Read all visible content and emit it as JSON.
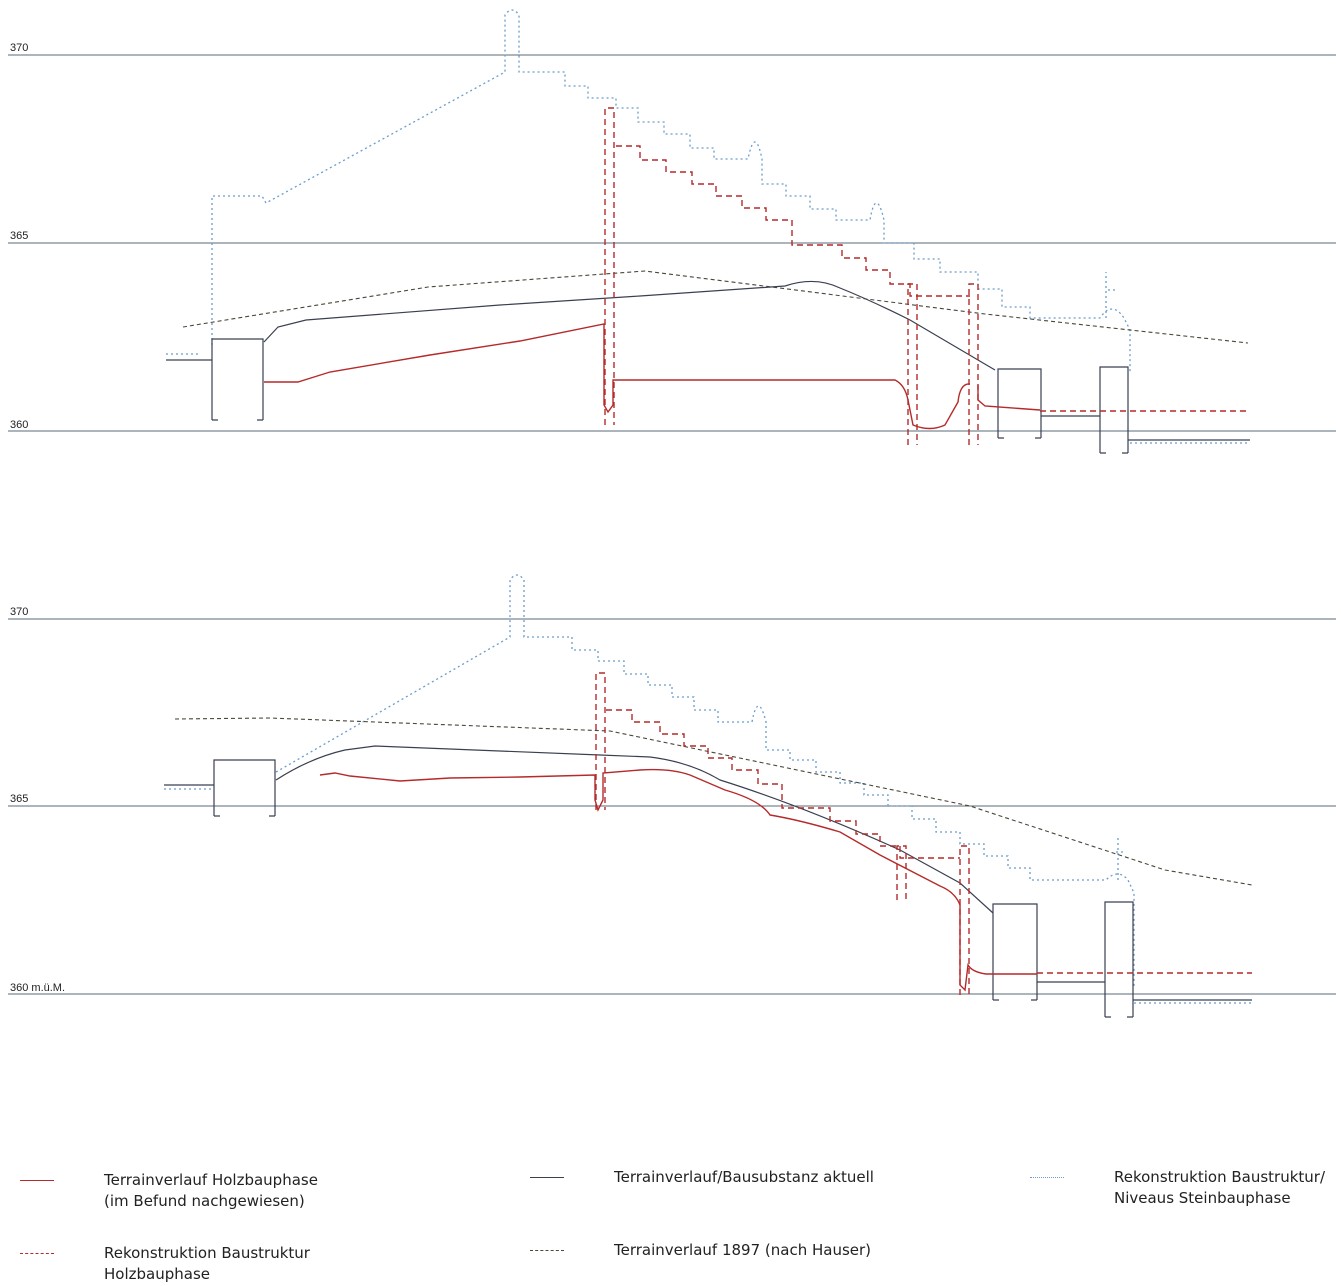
{
  "colors": {
    "holz_terrain": "#b52a2a",
    "holz_reconstruction": "#b52a2a",
    "aktuell": "#3a4050",
    "terrain_1897": "#4a4838",
    "steinbau": "#6a9ccc",
    "level_line": "#5a6878"
  },
  "sections": [
    {
      "name": "section-1",
      "level_labels": [
        "370",
        "365",
        "360"
      ]
    },
    {
      "name": "section-2",
      "level_labels": [
        "370",
        "365",
        "360 m.ü.M."
      ]
    }
  ],
  "legend": [
    {
      "key": "holz_terrain",
      "style": "solid",
      "lines": [
        "Terrainverlauf Holzbauphase",
        "(im Befund nachgewiesen)"
      ]
    },
    {
      "key": "aktuell",
      "style": "solid",
      "lines": [
        "Terrainverlauf/Bausubstanz aktuell"
      ]
    },
    {
      "key": "steinbau",
      "style": "dotted",
      "lines": [
        "Rekonstruktion Baustruktur/",
        "Niveaus Steinbauphase"
      ]
    },
    {
      "key": "holz_reconstruction",
      "style": "dashed",
      "lines": [
        "Rekonstruktion Baustruktur",
        "Holzbauphase"
      ]
    },
    {
      "key": "terrain_1897",
      "style": "dashed",
      "lines": [
        "Terrainverlauf 1897 (nach Hauser)"
      ]
    }
  ]
}
